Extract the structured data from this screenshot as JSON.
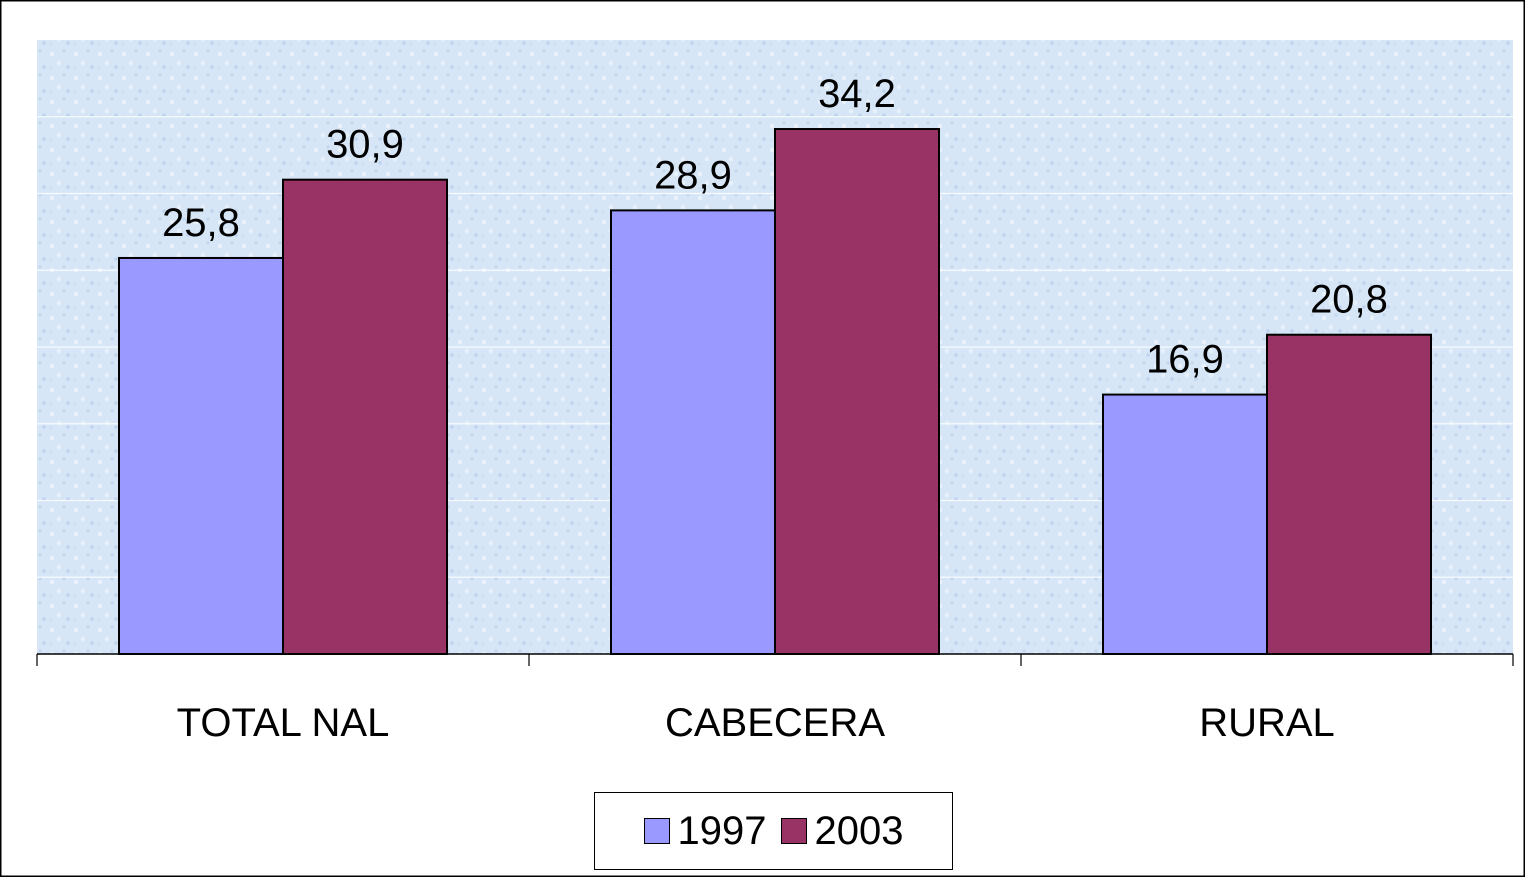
{
  "colors": {
    "plot_background": "#d6e6f7",
    "series_1997": "#9999ff",
    "series_2003": "#993366",
    "gridline": "#ffffff",
    "axis": "#000000"
  },
  "chart_data": {
    "type": "bar",
    "title": "",
    "xlabel": "",
    "ylabel": "",
    "categories": [
      "TOTAL NAL",
      "CABECERA",
      "RURAL"
    ],
    "series": [
      {
        "name": "1997",
        "values": [
          25.8,
          28.9,
          16.9
        ],
        "labels": [
          "25,8",
          "28,9",
          "16,9"
        ]
      },
      {
        "name": "2003",
        "values": [
          30.9,
          34.2,
          20.8
        ],
        "labels": [
          "30,9",
          "34,2",
          "20,8"
        ]
      }
    ],
    "ylim": [
      0,
      40
    ],
    "grid": true,
    "legend_position": "bottom"
  }
}
